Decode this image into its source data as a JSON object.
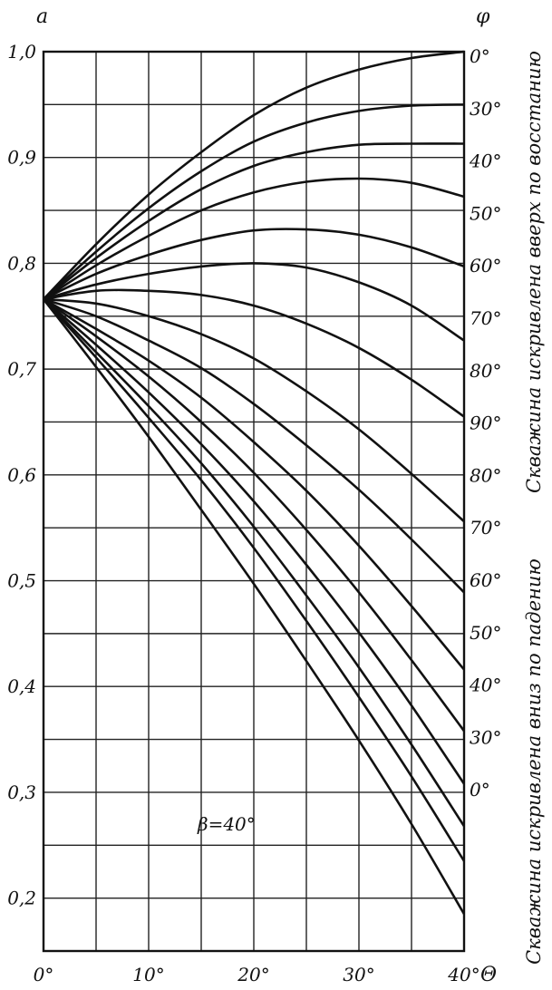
{
  "chart_data": {
    "type": "line",
    "y_axis_label": "a",
    "right_axis_label": "φ",
    "x_axis_label": "Θ",
    "xlim": [
      0,
      40
    ],
    "ylim": [
      0.15,
      1.0
    ],
    "grid": true,
    "x_ticks": [
      {
        "value": 0,
        "label": "0°"
      },
      {
        "value": 10,
        "label": "10°"
      },
      {
        "value": 20,
        "label": "20°"
      },
      {
        "value": 30,
        "label": "30°"
      },
      {
        "value": 40,
        "label": "40°"
      }
    ],
    "y_ticks": [
      {
        "value": 1.0,
        "label": "1,0"
      },
      {
        "value": 0.9,
        "label": "0,9"
      },
      {
        "value": 0.8,
        "label": "0,8"
      },
      {
        "value": 0.7,
        "label": "0,7"
      },
      {
        "value": 0.6,
        "label": "0,6"
      },
      {
        "value": 0.5,
        "label": "0,5"
      },
      {
        "value": 0.4,
        "label": "0,4"
      },
      {
        "value": 0.3,
        "label": "0,3"
      },
      {
        "value": 0.2,
        "label": "0,2"
      }
    ],
    "annotation": "β=40°",
    "side_label_upper": "Скважина искривлена вверх по восстанию",
    "side_label_lower": "Скважина искривлена вниз по падению",
    "x": [
      0,
      5,
      10,
      15,
      20,
      25,
      30,
      35,
      40
    ],
    "series": [
      {
        "label": "0°",
        "group": "up",
        "values": [
          0.766,
          0.818,
          0.865,
          0.905,
          0.94,
          0.966,
          0.983,
          0.994,
          1.0
        ]
      },
      {
        "label": "30°",
        "group": "up",
        "values": [
          0.766,
          0.811,
          0.852,
          0.887,
          0.915,
          0.933,
          0.944,
          0.949,
          0.95
        ]
      },
      {
        "label": "40°",
        "group": "up",
        "values": [
          0.766,
          0.805,
          0.84,
          0.87,
          0.892,
          0.905,
          0.912,
          0.913,
          0.913
        ]
      },
      {
        "label": "50°",
        "group": "up",
        "values": [
          0.766,
          0.798,
          0.826,
          0.85,
          0.867,
          0.877,
          0.88,
          0.876,
          0.863
        ]
      },
      {
        "label": "60°",
        "group": "up",
        "values": [
          0.766,
          0.79,
          0.808,
          0.822,
          0.831,
          0.832,
          0.827,
          0.815,
          0.797
        ]
      },
      {
        "label": "70°",
        "group": "up",
        "values": [
          0.766,
          0.78,
          0.79,
          0.797,
          0.8,
          0.796,
          0.782,
          0.76,
          0.727
        ]
      },
      {
        "label": "80°",
        "group": "up",
        "values": [
          0.766,
          0.774,
          0.774,
          0.77,
          0.76,
          0.743,
          0.72,
          0.69,
          0.655
        ]
      },
      {
        "label": "90°",
        "group": "pivot",
        "values": [
          0.766,
          0.762,
          0.75,
          0.733,
          0.71,
          0.679,
          0.643,
          0.601,
          0.556
        ]
      },
      {
        "label": "80°",
        "group": "down",
        "values": [
          0.766,
          0.75,
          0.727,
          0.701,
          0.667,
          0.628,
          0.586,
          0.539,
          0.489
        ]
      },
      {
        "label": "70°",
        "group": "down",
        "values": [
          0.766,
          0.738,
          0.708,
          0.673,
          0.631,
          0.585,
          0.533,
          0.476,
          0.416
        ]
      },
      {
        "label": "60°",
        "group": "down",
        "values": [
          0.766,
          0.731,
          0.693,
          0.65,
          0.602,
          0.548,
          0.489,
          0.425,
          0.358
        ]
      },
      {
        "label": "50°",
        "group": "down",
        "values": [
          0.766,
          0.723,
          0.678,
          0.629,
          0.575,
          0.515,
          0.451,
          0.382,
          0.308
        ]
      },
      {
        "label": "40°",
        "group": "down",
        "values": [
          0.766,
          0.716,
          0.665,
          0.611,
          0.551,
          0.486,
          0.418,
          0.345,
          0.268
        ]
      },
      {
        "label": "30°",
        "group": "down",
        "values": [
          0.766,
          0.711,
          0.654,
          0.595,
          0.531,
          0.462,
          0.39,
          0.315,
          0.235
        ]
      },
      {
        "label": "0°",
        "group": "down",
        "values": [
          0.766,
          0.702,
          0.636,
          0.567,
          0.497,
          0.424,
          0.349,
          0.27,
          0.185
        ]
      }
    ]
  }
}
